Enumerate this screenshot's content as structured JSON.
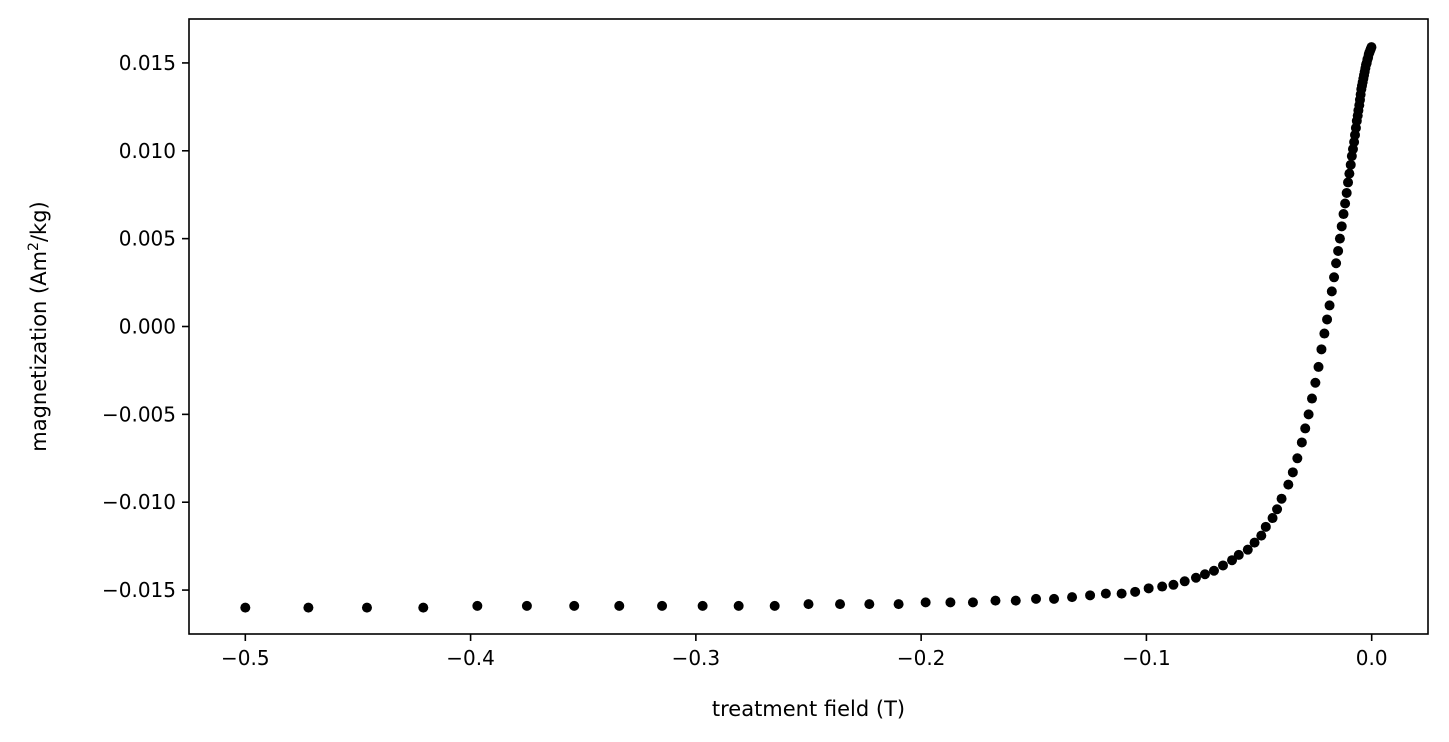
{
  "chart_data": {
    "type": "scatter",
    "title": "",
    "xlabel": "treatment field (T)",
    "ylabel_main": "magnetization (Am",
    "ylabel_sup": "2",
    "ylabel_tail": "/kg)",
    "xlim": [
      -0.525,
      0.025
    ],
    "ylim": [
      -0.0175,
      0.0175
    ],
    "x_ticks": [
      -0.5,
      -0.4,
      -0.3,
      -0.2,
      -0.1,
      0.0
    ],
    "x_tick_labels": [
      "−0.5",
      "−0.4",
      "−0.3",
      "−0.2",
      "−0.1",
      "0.0"
    ],
    "y_ticks": [
      0.015,
      0.01,
      0.005,
      0.0,
      -0.005,
      -0.01,
      -0.015
    ],
    "y_tick_labels": [
      "0.015",
      "0.010",
      "0.005",
      "0.000",
      "−0.005",
      "−0.010",
      "−0.015"
    ],
    "grid": false,
    "marker_color": "#000000",
    "series": [
      {
        "x": [
          -0.5,
          -0.472,
          -0.446,
          -0.421,
          -0.397,
          -0.375,
          -0.354,
          -0.334,
          -0.315,
          -0.297,
          -0.281,
          -0.265,
          -0.25,
          -0.236,
          -0.223,
          -0.21,
          -0.198,
          -0.187,
          -0.177,
          -0.167,
          -0.158,
          -0.149,
          -0.141,
          -0.133,
          -0.125,
          -0.118,
          -0.111,
          -0.105,
          -0.099,
          -0.093,
          -0.088,
          -0.083,
          -0.078,
          -0.074,
          -0.07,
          -0.066,
          -0.062,
          -0.059,
          -0.055,
          -0.052,
          -0.049,
          -0.047,
          -0.044,
          -0.042,
          -0.04,
          -0.037,
          -0.035,
          -0.033,
          -0.031,
          -0.0295,
          -0.028,
          -0.0265,
          -0.025,
          -0.0236,
          -0.0223,
          -0.021,
          -0.0198,
          -0.0187,
          -0.0177,
          -0.0167,
          -0.0158,
          -0.0149,
          -0.0141,
          -0.0133,
          -0.0125,
          -0.0118,
          -0.0111,
          -0.0105,
          -0.0099,
          -0.0093,
          -0.0088,
          -0.0083,
          -0.0078,
          -0.0074,
          -0.007,
          -0.0066,
          -0.0062,
          -0.0059,
          -0.0055,
          -0.0052,
          -0.0049,
          -0.0046,
          -0.0043,
          -0.004,
          -0.0037,
          -0.0034,
          -0.0031,
          -0.0028,
          -0.0025,
          -0.0022,
          -0.0019,
          -0.0016,
          -0.0013,
          -0.001,
          -0.0007,
          -0.0004,
          -0.0001
        ],
        "y": [
          -0.016,
          -0.016,
          -0.016,
          -0.016,
          -0.0159,
          -0.0159,
          -0.0159,
          -0.0159,
          -0.0159,
          -0.0159,
          -0.0159,
          -0.0159,
          -0.0158,
          -0.0158,
          -0.0158,
          -0.0158,
          -0.0157,
          -0.0157,
          -0.0157,
          -0.0156,
          -0.0156,
          -0.0155,
          -0.0155,
          -0.0154,
          -0.0153,
          -0.0152,
          -0.0152,
          -0.0151,
          -0.0149,
          -0.0148,
          -0.0147,
          -0.0145,
          -0.0143,
          -0.0141,
          -0.0139,
          -0.0136,
          -0.0133,
          -0.013,
          -0.0127,
          -0.0123,
          -0.0119,
          -0.0114,
          -0.0109,
          -0.0104,
          -0.0098,
          -0.009,
          -0.0083,
          -0.0075,
          -0.0066,
          -0.0058,
          -0.005,
          -0.0041,
          -0.0032,
          -0.0023,
          -0.0013,
          -0.0004,
          0.0004,
          0.0012,
          0.002,
          0.0028,
          0.0036,
          0.0043,
          0.005,
          0.0057,
          0.0064,
          0.007,
          0.0076,
          0.0082,
          0.0087,
          0.0092,
          0.0097,
          0.0101,
          0.0105,
          0.0109,
          0.0113,
          0.0117,
          0.012,
          0.0123,
          0.0126,
          0.0129,
          0.0132,
          0.0135,
          0.0137,
          0.0139,
          0.0141,
          0.0143,
          0.0145,
          0.0147,
          0.0149,
          0.015,
          0.0152,
          0.0153,
          0.0155,
          0.0156,
          0.0157,
          0.0158,
          0.0159
        ]
      }
    ]
  }
}
